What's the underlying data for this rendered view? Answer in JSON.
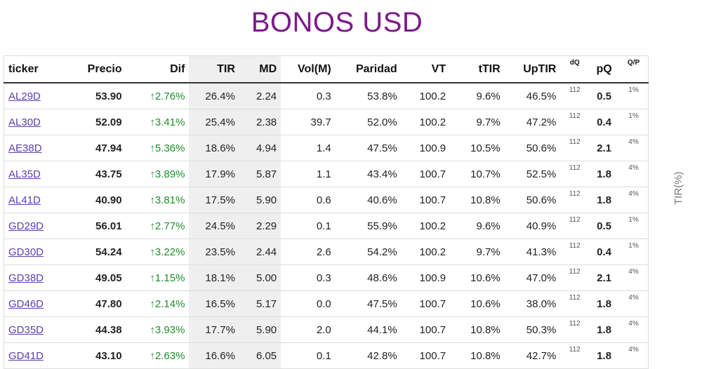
{
  "title": "BONOS USD",
  "side_label": "TIR(%)",
  "colors": {
    "title": "#7b1a8a",
    "dif_up": "#1f8f2a",
    "link": "#5b3fb0"
  },
  "columns": [
    "ticker",
    "Precio",
    "Dif",
    "TIR",
    "MD",
    "Vol(M)",
    "Paridad",
    "VT",
    "tTIR",
    "UpTIR",
    "dQ",
    "pQ",
    "Q/P"
  ],
  "rows": [
    {
      "ticker": "AL29D",
      "precio": "53.90",
      "dif": "↑2.76%",
      "tir": "26.4%",
      "md": "2.24",
      "vol": "0.3",
      "paridad": "53.8%",
      "vt": "100.2",
      "ttir": "9.6%",
      "uptir": "46.5%",
      "dq": "112",
      "pq": "0.5",
      "qp": "1%"
    },
    {
      "ticker": "AL30D",
      "precio": "52.09",
      "dif": "↑3.41%",
      "tir": "25.4%",
      "md": "2.38",
      "vol": "39.7",
      "paridad": "52.0%",
      "vt": "100.2",
      "ttir": "9.7%",
      "uptir": "47.2%",
      "dq": "112",
      "pq": "0.4",
      "qp": "1%"
    },
    {
      "ticker": "AE38D",
      "precio": "47.94",
      "dif": "↑5.36%",
      "tir": "18.6%",
      "md": "4.94",
      "vol": "1.4",
      "paridad": "47.5%",
      "vt": "100.9",
      "ttir": "10.5%",
      "uptir": "50.6%",
      "dq": "112",
      "pq": "2.1",
      "qp": "4%"
    },
    {
      "ticker": "AL35D",
      "precio": "43.75",
      "dif": "↑3.89%",
      "tir": "17.9%",
      "md": "5.87",
      "vol": "1.1",
      "paridad": "43.4%",
      "vt": "100.7",
      "ttir": "10.7%",
      "uptir": "52.5%",
      "dq": "112",
      "pq": "1.8",
      "qp": "4%"
    },
    {
      "ticker": "AL41D",
      "precio": "40.90",
      "dif": "↑3.81%",
      "tir": "17.5%",
      "md": "5.90",
      "vol": "0.6",
      "paridad": "40.6%",
      "vt": "100.7",
      "ttir": "10.8%",
      "uptir": "50.6%",
      "dq": "112",
      "pq": "1.8",
      "qp": "4%"
    },
    {
      "ticker": "GD29D",
      "precio": "56.01",
      "dif": "↑2.77%",
      "tir": "24.5%",
      "md": "2.29",
      "vol": "0.1",
      "paridad": "55.9%",
      "vt": "100.2",
      "ttir": "9.6%",
      "uptir": "40.9%",
      "dq": "112",
      "pq": "0.5",
      "qp": "1%"
    },
    {
      "ticker": "GD30D",
      "precio": "54.24",
      "dif": "↑3.22%",
      "tir": "23.5%",
      "md": "2.44",
      "vol": "2.6",
      "paridad": "54.2%",
      "vt": "100.2",
      "ttir": "9.7%",
      "uptir": "41.3%",
      "dq": "112",
      "pq": "0.4",
      "qp": "1%"
    },
    {
      "ticker": "GD38D",
      "precio": "49.05",
      "dif": "↑1.15%",
      "tir": "18.1%",
      "md": "5.00",
      "vol": "0.3",
      "paridad": "48.6%",
      "vt": "100.9",
      "ttir": "10.6%",
      "uptir": "47.0%",
      "dq": "112",
      "pq": "2.1",
      "qp": "4%"
    },
    {
      "ticker": "GD46D",
      "precio": "47.80",
      "dif": "↑2.14%",
      "tir": "16.5%",
      "md": "5.17",
      "vol": "0.0",
      "paridad": "47.5%",
      "vt": "100.7",
      "ttir": "10.6%",
      "uptir": "38.0%",
      "dq": "112",
      "pq": "1.8",
      "qp": "4%"
    },
    {
      "ticker": "GD35D",
      "precio": "44.38",
      "dif": "↑3.93%",
      "tir": "17.7%",
      "md": "5.90",
      "vol": "2.0",
      "paridad": "44.1%",
      "vt": "100.7",
      "ttir": "10.8%",
      "uptir": "50.3%",
      "dq": "112",
      "pq": "1.8",
      "qp": "4%"
    },
    {
      "ticker": "GD41D",
      "precio": "43.10",
      "dif": "↑2.63%",
      "tir": "16.6%",
      "md": "6.05",
      "vol": "0.1",
      "paridad": "42.8%",
      "vt": "100.7",
      "ttir": "10.8%",
      "uptir": "42.7%",
      "dq": "112",
      "pq": "1.8",
      "qp": "4%"
    }
  ]
}
